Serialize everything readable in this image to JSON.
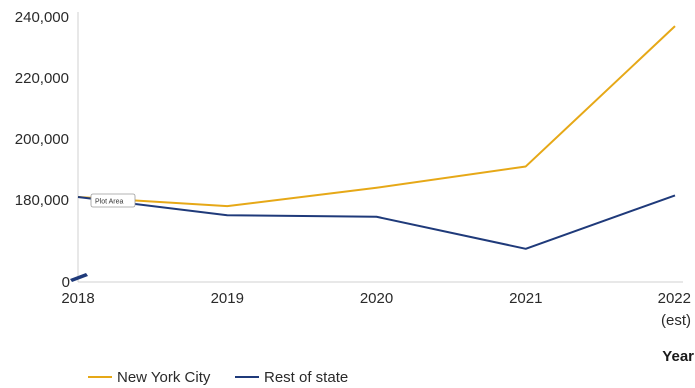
{
  "chart_data": {
    "type": "line",
    "x": [
      "2018",
      "2019",
      "2020",
      "2021",
      "2022"
    ],
    "x_tick_sublabels": [
      "",
      "",
      "",
      "",
      "(est)"
    ],
    "xlabel": "Year",
    "ylabel": "",
    "y_ticks": [
      0,
      180000,
      200000,
      220000,
      240000
    ],
    "y_tick_labels": [
      "0",
      "180,000",
      "200,000",
      "220,000",
      "240,000"
    ],
    "y_axis_break": true,
    "ylim": [
      0,
      240000
    ],
    "grid": false,
    "legend_position": "bottom-left",
    "series": [
      {
        "name": "New York City",
        "color": "#E6A817",
        "values": [
          181000,
          178000,
          184000,
          191000,
          237000
        ]
      },
      {
        "name": "Rest of state",
        "color": "#1F3A7A",
        "values": [
          181000,
          175000,
          174500,
          164000,
          181500
        ]
      }
    ],
    "annotation": "Plot Area"
  }
}
